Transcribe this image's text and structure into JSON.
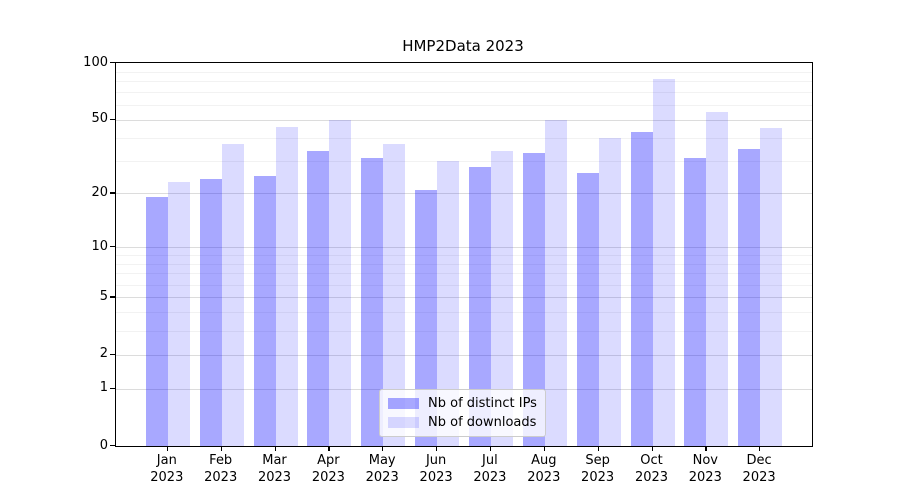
{
  "chart_data": {
    "type": "bar",
    "title": "HMP2Data 2023",
    "categories": [
      "Jan 2023",
      "Feb 2023",
      "Mar 2023",
      "Apr 2023",
      "May 2023",
      "Jun 2023",
      "Jul 2023",
      "Aug 2023",
      "Sep 2023",
      "Oct 2023",
      "Nov 2023",
      "Dec 2023"
    ],
    "series": [
      {
        "name": "Nb of distinct IPs",
        "color": "rgba(0,0,255,0.34)",
        "values": [
          19,
          24,
          25,
          34,
          31,
          21,
          28,
          33,
          26,
          43,
          31,
          35
        ]
      },
      {
        "name": "Nb of downloads",
        "color": "rgba(0,0,255,0.14)",
        "values": [
          23,
          37,
          46,
          50,
          37,
          30,
          34,
          50,
          40,
          82,
          55,
          45
        ]
      }
    ],
    "yscale": "log1p",
    "ylim": [
      0,
      100
    ],
    "y_major_ticks": [
      0,
      1,
      2,
      5,
      10,
      20,
      50,
      100
    ],
    "y_minor_gridlines": [
      3,
      4,
      6,
      7,
      8,
      9,
      30,
      40,
      60,
      70,
      80,
      90
    ],
    "xlabel": "",
    "ylabel": "",
    "grid": true,
    "legend_position": "lower center",
    "colors": {
      "major_grid": "#dcdcdc",
      "minor_grid": "#f2f2f2",
      "spine": "#000000"
    }
  }
}
